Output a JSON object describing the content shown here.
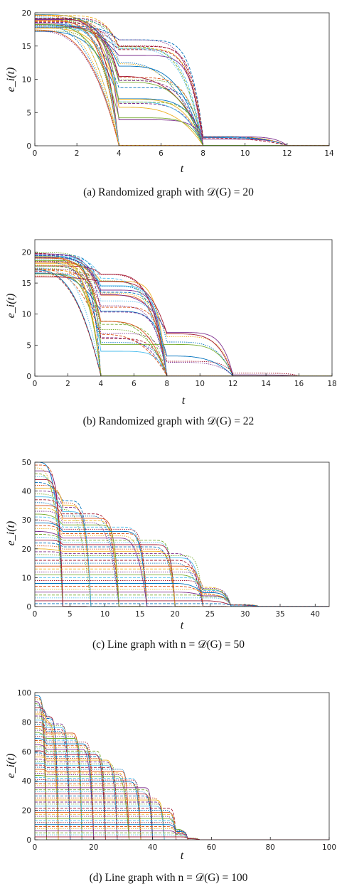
{
  "chart_data": [
    {
      "type": "line",
      "caption": "(a) Randomized graph with 𝒟(G) = 20",
      "xlabel": "t",
      "ylabel": "e_i(t)",
      "xlim": [
        0,
        14
      ],
      "ylim": [
        0,
        20
      ],
      "xticks": [
        0,
        2,
        4,
        6,
        8,
        10,
        12,
        14
      ],
      "yticks": [
        0,
        5,
        10,
        15,
        20
      ],
      "grid": false,
      "stage_length": 4,
      "stages": [
        {
          "t_end": 4,
          "initial_max": 19.8,
          "initial_min": 17.2
        },
        {
          "t_end": 8,
          "plateau_max": 16,
          "plateau_min": 0.3
        },
        {
          "t_end": 12,
          "plateau_max": 1.5,
          "plateau_min": 0.2
        }
      ]
    },
    {
      "type": "line",
      "caption": "(b) Randomized graph with 𝒟(G) = 22",
      "xlabel": "t",
      "ylabel": "e_i(t)",
      "xlim": [
        0,
        18
      ],
      "ylim": [
        0,
        22
      ],
      "xticks": [
        0,
        2,
        4,
        6,
        8,
        10,
        12,
        14,
        16,
        18
      ],
      "yticks": [
        0,
        5,
        10,
        15,
        20
      ],
      "grid": false,
      "stage_length": 4,
      "stages": [
        {
          "t_end": 4,
          "initial_max": 20,
          "initial_min": 16
        },
        {
          "t_end": 8,
          "plateau_max": 17,
          "plateau_min": 0.4
        },
        {
          "t_end": 12,
          "plateau_max": 8.3,
          "plateau_min": 0.3
        },
        {
          "t_end": 16,
          "plateau_max": 0.5,
          "plateau_min": 0.1
        }
      ]
    },
    {
      "type": "line",
      "caption": "(c) Line graph with n = 𝒟(G) = 50",
      "xlabel": "t",
      "ylabel": "e_i(t)",
      "xlim": [
        0,
        42
      ],
      "ylim": [
        0,
        50
      ],
      "xticks": [
        0,
        5,
        10,
        15,
        20,
        25,
        30,
        35,
        40
      ],
      "yticks": [
        0,
        10,
        20,
        30,
        40,
        50
      ],
      "grid": false,
      "stage_length": 4,
      "stages": [
        {
          "t_end": 4,
          "initial_max": 50
        },
        {
          "t_end": 8,
          "plateau_max": 42
        },
        {
          "t_end": 12,
          "plateau_max": 39.5
        },
        {
          "t_end": 16,
          "plateau_max": 38
        },
        {
          "t_end": 20,
          "plateau_max": 36.5
        },
        {
          "t_end": 24,
          "plateau_max": 28.5
        },
        {
          "t_end": 28,
          "plateau_max": 9
        },
        {
          "t_end": 32,
          "plateau_max": 1
        }
      ]
    },
    {
      "type": "line",
      "caption": "(d) Line graph with n = 𝒟(G) = 100",
      "xlabel": "t",
      "ylabel": "e_i(t)",
      "xlim": [
        0,
        100
      ],
      "ylim": [
        0,
        100
      ],
      "xticks": [
        0,
        20,
        40,
        60,
        80,
        100
      ],
      "yticks": [
        0,
        20,
        40,
        60,
        80,
        100
      ],
      "grid": false,
      "stage_length": 4,
      "stages": [
        {
          "t_end": 4,
          "initial_max": 98
        },
        {
          "t_end": 8,
          "plateau_max": 91
        },
        {
          "t_end": 12,
          "plateau_max": 89
        },
        {
          "t_end": 16,
          "plateau_max": 87.5
        },
        {
          "t_end": 20,
          "plateau_max": 86
        },
        {
          "t_end": 24,
          "plateau_max": 85
        },
        {
          "t_end": 28,
          "plateau_max": 84
        },
        {
          "t_end": 32,
          "plateau_max": 83
        },
        {
          "t_end": 36,
          "plateau_max": 82
        },
        {
          "t_end": 40,
          "plateau_max": 80
        },
        {
          "t_end": 44,
          "plateau_max": 65
        },
        {
          "t_end": 48,
          "plateau_max": 45
        },
        {
          "t_end": 52,
          "plateau_max": 10
        },
        {
          "t_end": 56,
          "plateau_max": 2
        }
      ]
    }
  ],
  "palette": [
    "#0072bd",
    "#d95319",
    "#edb120",
    "#7e2f8e",
    "#77ac30",
    "#4dbeee",
    "#a2142f"
  ]
}
